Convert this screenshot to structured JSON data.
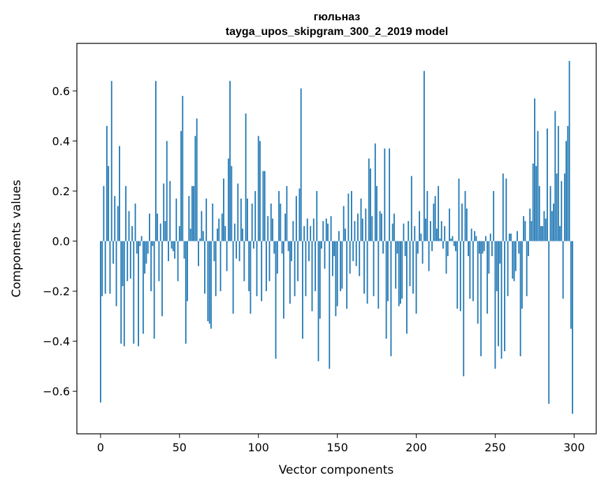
{
  "chart_data": {
    "type": "bar",
    "title_line1": "гюльназ",
    "title_line2": "tayga_upos_skipgram_300_2_2019 model",
    "xlabel": "Vector components",
    "ylabel": "Components values",
    "xlim": [
      -15,
      314
    ],
    "ylim": [
      -0.77,
      0.79
    ],
    "xticks": [
      0,
      50,
      100,
      150,
      200,
      250,
      300
    ],
    "yticks": [
      -0.6,
      -0.4,
      -0.2,
      0.0,
      0.2,
      0.4,
      0.6
    ],
    "ytick_labels": [
      "−0.6",
      "−0.4",
      "−0.2",
      "0.0",
      "0.2",
      "0.4",
      "0.6"
    ],
    "bar_color": "#1f77b4",
    "values": [
      -0.645,
      -0.22,
      0.22,
      -0.21,
      0.46,
      0.3,
      -0.21,
      0.64,
      -0.09,
      0.18,
      -0.26,
      0.14,
      0.38,
      -0.41,
      -0.18,
      -0.42,
      0.22,
      -0.16,
      0.12,
      -0.15,
      0.06,
      -0.41,
      0.15,
      -0.05,
      -0.42,
      -0.02,
      0.02,
      -0.37,
      -0.13,
      -0.09,
      -0.05,
      0.11,
      -0.2,
      -0.02,
      -0.39,
      0.64,
      0.11,
      -0.16,
      0.07,
      -0.3,
      0.23,
      0.08,
      0.4,
      -0.08,
      0.24,
      -0.03,
      -0.04,
      -0.07,
      0.17,
      -0.16,
      0.06,
      0.44,
      0.58,
      -0.07,
      -0.41,
      -0.24,
      0.18,
      0.05,
      0.22,
      0.22,
      0.42,
      0.49,
      -0.1,
      0.01,
      0.12,
      0.04,
      -0.21,
      0.17,
      -0.32,
      -0.33,
      -0.35,
      0.15,
      -0.08,
      -0.22,
      0.05,
      0.09,
      -0.2,
      0.11,
      0.25,
      0.06,
      -0.12,
      0.33,
      0.64,
      0.3,
      -0.29,
      0.07,
      -0.07,
      0.23,
      -0.08,
      0.17,
      0.05,
      -0.16,
      0.51,
      0.17,
      -0.2,
      -0.29,
      0.15,
      -0.03,
      0.2,
      -0.22,
      0.42,
      0.4,
      -0.24,
      0.28,
      0.28,
      -0.2,
      0.1,
      -0.16,
      0.15,
      0.09,
      -0.05,
      -0.47,
      -0.13,
      0.2,
      0.15,
      -0.05,
      -0.31,
      0.11,
      0.22,
      -0.04,
      -0.25,
      -0.08,
      0.08,
      -0.22,
      0.18,
      -0.16,
      0.21,
      0.61,
      -0.39,
      0.06,
      -0.22,
      0.09,
      -0.08,
      0.06,
      -0.28,
      0.09,
      -0.2,
      0.2,
      -0.48,
      -0.31,
      -0.03,
      0.08,
      -0.11,
      0.09,
      0.07,
      -0.51,
      0.1,
      -0.14,
      -0.06,
      -0.3,
      -0.26,
      0.04,
      -0.2,
      -0.19,
      0.14,
      0.05,
      -0.27,
      0.19,
      -0.13,
      0.2,
      -0.08,
      0.08,
      -0.1,
      0.11,
      -0.14,
      0.17,
      0.09,
      -0.21,
      0.13,
      -0.25,
      0.33,
      0.29,
      0.1,
      -0.22,
      0.39,
      0.22,
      -0.27,
      0.12,
      0.11,
      -0.05,
      0.37,
      -0.39,
      -0.24,
      0.37,
      -0.46,
      0.07,
      0.11,
      -0.19,
      -0.05,
      -0.26,
      -0.25,
      -0.23,
      0.07,
      -0.06,
      -0.37,
      0.08,
      -0.18,
      0.26,
      -0.21,
      0.06,
      -0.29,
      -0.05,
      0.12,
      0.03,
      -0.09,
      0.68,
      0.09,
      0.2,
      -0.12,
      0.08,
      -0.04,
      0.15,
      0.18,
      0.05,
      0.22,
      0.01,
      0.08,
      -0.03,
      0.06,
      -0.13,
      -0.06,
      0.13,
      0.01,
      0.02,
      -0.02,
      -0.04,
      -0.27,
      0.25,
      -0.28,
      0.15,
      -0.54,
      0.2,
      0.13,
      -0.06,
      -0.23,
      0.05,
      -0.24,
      0.04,
      0.02,
      -0.33,
      -0.05,
      -0.46,
      -0.05,
      -0.04,
      0.02,
      -0.29,
      -0.13,
      0.03,
      -0.06,
      0.2,
      -0.51,
      -0.2,
      -0.42,
      -0.09,
      -0.47,
      0.27,
      -0.44,
      0.25,
      -0.22,
      0.03,
      0.03,
      -0.15,
      -0.16,
      -0.12,
      0.04,
      -0.05,
      -0.46,
      -0.27,
      0.1,
      0.08,
      -0.22,
      -0.06,
      0.13,
      0.08,
      0.31,
      0.57,
      0.3,
      0.44,
      0.22,
      0.06,
      0.06,
      0.12,
      0.09,
      0.45,
      -0.65,
      0.22,
      0.12,
      0.15,
      0.52,
      0.27,
      0.46,
      0.06,
      0.24,
      -0.23,
      0.27,
      0.4,
      0.46,
      0.72,
      -0.35,
      -0.69
    ]
  }
}
